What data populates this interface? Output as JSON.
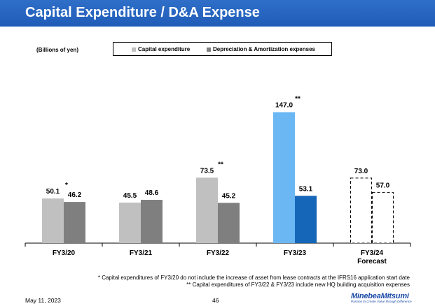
{
  "header": {
    "title": "Capital Expenditure / D&A Expense"
  },
  "unit_label": "(Billions of yen)",
  "legend": {
    "items": [
      {
        "label": "Capital expenditure",
        "color": "#c0c0c0"
      },
      {
        "label": "Depreciation & Amortization expenses",
        "color": "#7f7f7f"
      }
    ]
  },
  "chart_data": {
    "type": "bar",
    "ylabel": "Billions of yen",
    "ylim": [
      0,
      160
    ],
    "grid": false,
    "legend_position": "top",
    "categories": [
      {
        "label": "FY3/20",
        "sublabel": ""
      },
      {
        "label": "FY3/21",
        "sublabel": ""
      },
      {
        "label": "FY3/22",
        "sublabel": ""
      },
      {
        "label": "FY3/23",
        "sublabel": ""
      },
      {
        "label": "FY3/24",
        "sublabel": "Forecast"
      }
    ],
    "series": [
      {
        "name": "Capital expenditure",
        "values": [
          50.1,
          45.5,
          73.5,
          147.0,
          73.0
        ],
        "value_labels": [
          "50.1",
          "45.5",
          "73.5",
          "147.0",
          "73.0"
        ],
        "annotations": [
          "*",
          "",
          "**",
          "**",
          ""
        ],
        "colors": [
          "#c0c0c0",
          "#c0c0c0",
          "#c0c0c0",
          "#6ab7f4",
          "dashed"
        ]
      },
      {
        "name": "Depreciation & Amortization expenses",
        "values": [
          46.2,
          48.6,
          45.2,
          53.1,
          57.0
        ],
        "value_labels": [
          "46.2",
          "48.6",
          "45.2",
          "53.1",
          "57.0"
        ],
        "annotations": [
          "",
          "",
          "",
          "",
          ""
        ],
        "colors": [
          "#7f7f7f",
          "#7f7f7f",
          "#7f7f7f",
          "#1565b8",
          "dashed"
        ]
      }
    ]
  },
  "footnotes": [
    "* Capital expenditures of FY3/20 do not include the increase of asset from lease contracts at the IFRS16 application start date",
    "** Capital expenditures of FY3/22 & FY3/23 include new HQ building acquisition expenses"
  ],
  "footer": {
    "date": "May 11, 2023",
    "page": "46",
    "logo_name": "MinebeaMitsumi",
    "logo_tagline": "Passion to Create Value through Difference"
  }
}
